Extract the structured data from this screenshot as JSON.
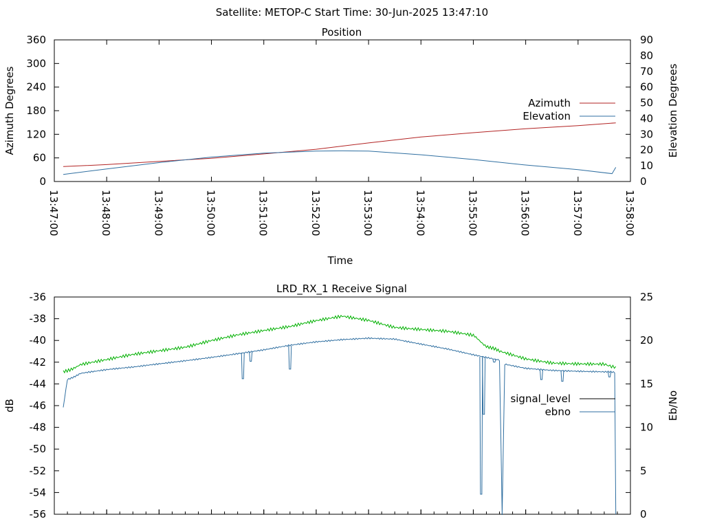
{
  "figure": {
    "supertitle": "Satellite: METOP-C    Start Time: 30-Jun-2025 13:47:10"
  },
  "chart_data": [
    {
      "type": "line",
      "title": "Position",
      "xlabel": "Time",
      "ylabel": "Azimuth Degrees",
      "y2label": "Elevation Degrees",
      "xticks": [
        "13:47:00",
        "13:48:00",
        "13:49:00",
        "13:50:00",
        "13:51:00",
        "13:52:00",
        "13:53:00",
        "13:54:00",
        "13:55:00",
        "13:56:00",
        "13:57:00",
        "13:58:00"
      ],
      "xlim_minutes": [
        0,
        11
      ],
      "ylim": [
        0,
        360
      ],
      "yticks": [
        "0",
        "60",
        "120",
        "180",
        "240",
        "300",
        "360"
      ],
      "y2lim": [
        0,
        90
      ],
      "y2ticks": [
        "0",
        "10",
        "20",
        "30",
        "40",
        "50",
        "60",
        "70",
        "80",
        "90"
      ],
      "legend_position": "right",
      "grid": false,
      "series": [
        {
          "name": "Azimuth",
          "axis": "left",
          "color": "#b22222",
          "x": [
            0.17,
            1,
            2,
            3,
            4,
            5,
            6,
            7,
            8,
            9,
            10,
            10.72
          ],
          "y": [
            38,
            43,
            51,
            59,
            70,
            82,
            98,
            113,
            124,
            134,
            142,
            149
          ]
        },
        {
          "name": "Elevation",
          "axis": "right",
          "color": "#2e6ea0",
          "x": [
            0.17,
            1,
            2,
            3,
            4,
            5,
            5.5,
            6,
            7,
            8,
            9,
            10,
            10.65,
            10.72
          ],
          "y": [
            4.5,
            8,
            12,
            15.5,
            18,
            19.3,
            19.5,
            19.3,
            17,
            14,
            10.5,
            7.5,
            5,
            9
          ]
        }
      ]
    },
    {
      "type": "line",
      "title": "LRD_RX_1 Receive Signal",
      "xlabel": "",
      "ylabel": "dB",
      "y2label": "Eb/No",
      "ylim": [
        -56,
        -36
      ],
      "yticks": [
        "-56",
        "-54",
        "-52",
        "-50",
        "-48",
        "-46",
        "-44",
        "-42",
        "-40",
        "-38",
        "-36"
      ],
      "y2lim": [
        0,
        25
      ],
      "y2ticks": [
        "0",
        "5",
        "10",
        "15",
        "20",
        "25"
      ],
      "legend_position": "right",
      "grid": false,
      "series": [
        {
          "name": "signal_level",
          "axis": "left",
          "color": "#000000",
          "x": [
            10.72,
            10.72
          ],
          "y": [
            -49.5,
            -49.5
          ]
        },
        {
          "name": "ebno",
          "axis": "right",
          "color": "#2e6ea0",
          "x": [
            0.17,
            0.25,
            0.5,
            1,
            1.5,
            2,
            3,
            4,
            4.5,
            5,
            5.5,
            6,
            6.5,
            7,
            7.5,
            8,
            8.5,
            8.55,
            8.6,
            9,
            9.5,
            10,
            10.5,
            10.7,
            10.72
          ],
          "y": [
            12.3,
            15.5,
            16.2,
            16.6,
            16.9,
            17.3,
            18.1,
            18.9,
            19.4,
            19.8,
            20.1,
            20.3,
            20.2,
            19.6,
            19,
            18.3,
            17.7,
            0,
            17.3,
            16.8,
            16.6,
            16.5,
            16.4,
            16.3,
            0
          ],
          "dips": [
            {
              "x": 3.6,
              "y": 15.6
            },
            {
              "x": 3.75,
              "y": 17.6
            },
            {
              "x": 4.5,
              "y": 16.7
            },
            {
              "x": 8.15,
              "y": 2.3
            },
            {
              "x": 8.2,
              "y": 11.5
            },
            {
              "x": 8.4,
              "y": 17.5
            },
            {
              "x": 9.3,
              "y": 15.5
            },
            {
              "x": 9.7,
              "y": 15.3
            },
            {
              "x": 10.6,
              "y": 15.8
            }
          ]
        },
        {
          "name": "",
          "axis": "right",
          "color": "#00b000",
          "x": [
            0.17,
            0.5,
            1,
            1.5,
            2,
            2.5,
            3,
            3.5,
            4,
            4.5,
            5,
            5.5,
            6,
            6.5,
            7,
            7.5,
            8,
            8.25,
            8.5,
            9,
            9.5,
            10,
            10.5,
            10.72
          ],
          "y": [
            16.4,
            17.2,
            17.7,
            18.3,
            18.8,
            19.3,
            20.1,
            20.7,
            21.1,
            21.5,
            22.2,
            22.8,
            22.4,
            21.6,
            21.3,
            21,
            20.5,
            19.4,
            18.7,
            17.9,
            17.5,
            17.4,
            17.3,
            17
          ]
        }
      ]
    }
  ]
}
